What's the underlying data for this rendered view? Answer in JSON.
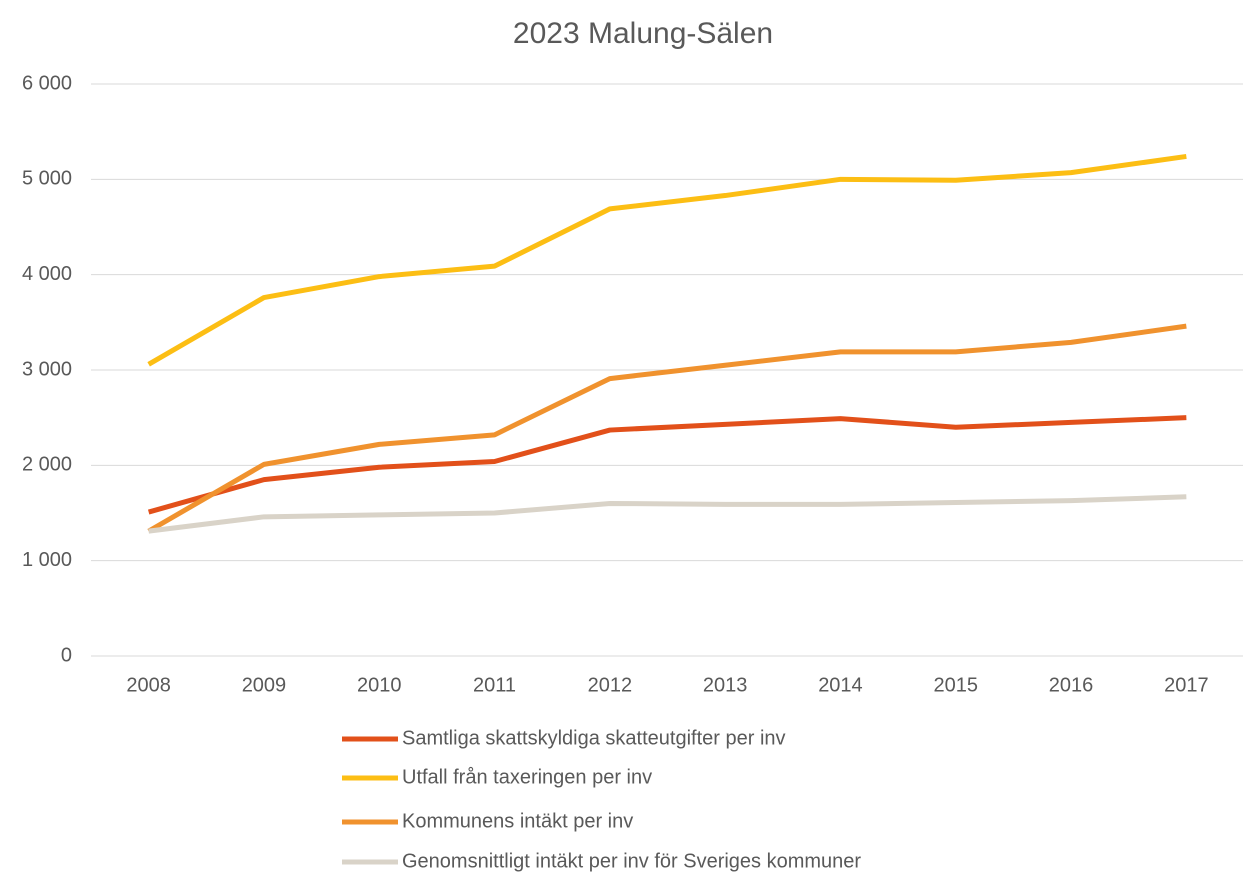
{
  "chart_data": {
    "type": "line",
    "title": "2023 Malung-Sälen",
    "categories": [
      "2008",
      "2009",
      "2010",
      "2011",
      "2012",
      "2013",
      "2014",
      "2015",
      "2016",
      "2017"
    ],
    "series": [
      {
        "name": "Samtliga skattskyldiga skatteutgifter per inv",
        "color": "#e2501a",
        "values": [
          1510,
          1850,
          1980,
          2040,
          2370,
          2430,
          2490,
          2400,
          2450,
          2500
        ]
      },
      {
        "name": "Utfall från taxeringen per inv",
        "color": "#fcbe14",
        "values": [
          3060,
          3760,
          3980,
          4090,
          4690,
          4830,
          5000,
          4990,
          5070,
          5240
        ]
      },
      {
        "name": "Kommunens intäkt per inv",
        "color": "#f0922e",
        "values": [
          1310,
          2010,
          2220,
          2320,
          2910,
          3050,
          3190,
          3190,
          3290,
          3460
        ]
      },
      {
        "name": "Genomsnittligt intäkt per inv för Sveriges kommuner",
        "color": "#d9d3c8",
        "values": [
          1310,
          1460,
          1480,
          1500,
          1600,
          1590,
          1590,
          1610,
          1630,
          1670
        ]
      }
    ],
    "ylim": [
      0,
      6000
    ],
    "yticks": [
      0,
      {
        "value": 1000,
        "label": "1 000"
      },
      {
        "value": 2000,
        "label": "2 000"
      },
      {
        "value": 3000,
        "label": "3 000"
      },
      {
        "value": 4000,
        "label": "4 000"
      },
      {
        "value": 5000,
        "label": "5 000"
      },
      {
        "value": 6000,
        "label": "6 000"
      }
    ],
    "grid": true,
    "legend": "bottom"
  }
}
